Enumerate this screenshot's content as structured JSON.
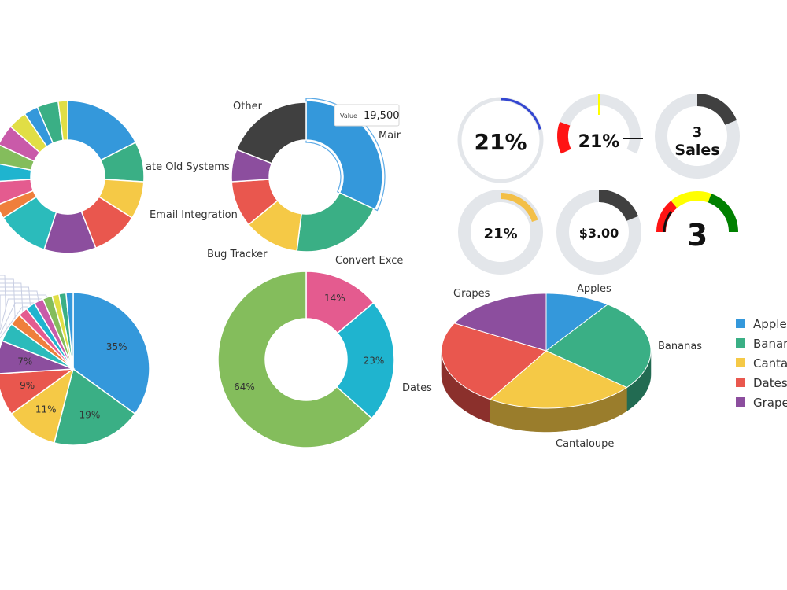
{
  "colors": {
    "blue": "#3498db",
    "teal": "#3aaf85",
    "yellow": "#f5c946",
    "red": "#e9574e",
    "purple": "#8c4e9e",
    "cyan": "#2bbbbb",
    "orange": "#ef7f3c",
    "pink": "#e45b8f",
    "sky": "#1fb4cf",
    "green": "#84bd5c",
    "lime": "#e1de45",
    "magenta": "#c95aa9",
    "dark": "#404040",
    "track": "#e3e6ea",
    "gaugeBlue": "#3346d1",
    "gaugeRed": "#ff1414",
    "gaugeYellow": "#ffff00",
    "gaugeGreen": "#008000",
    "amber": "#f3bf47",
    "bananaGreen": "#84bd5c"
  },
  "chart_data": [
    {
      "type": "pie",
      "variant": "donut",
      "labels": [
        "",
        "",
        "ate Old Systems",
        "Email Integration",
        "",
        "",
        "",
        "",
        "",
        "",
        "",
        "",
        "",
        "",
        ""
      ],
      "values": [
        17.5,
        8.5,
        8,
        10,
        11,
        11,
        3,
        5,
        4,
        4,
        4.5,
        4,
        3,
        4.5,
        2
      ]
    },
    {
      "type": "pie",
      "variant": "donut",
      "labels": [
        "Mair",
        "Convert Exce",
        "Bug Tracker",
        "",
        "",
        "Other"
      ],
      "values": [
        32,
        20,
        12,
        10,
        7,
        19
      ],
      "tooltip": {
        "label": "Value",
        "value": "19,500"
      }
    },
    {
      "type": "gauge",
      "gauges": [
        {
          "text": "21%",
          "value": 21
        },
        {
          "text": "21%",
          "value": 21
        },
        {
          "text": "3",
          "sub": "Sales",
          "value": 3
        },
        {
          "text": "21%",
          "value": 21
        },
        {
          "text": "$3.00",
          "value": 3
        },
        {
          "text": "3",
          "value": 3
        }
      ]
    },
    {
      "type": "pie",
      "values": [
        35,
        19,
        11,
        9,
        7,
        4,
        2.5,
        2,
        2,
        2,
        2,
        1.5,
        1.5,
        1.5
      ],
      "labels": [
        "35%",
        "19%",
        "11%",
        "9%",
        "7%",
        "",
        "",
        "",
        "",
        "",
        "",
        "",
        "",
        ""
      ]
    },
    {
      "type": "pie",
      "variant": "donut",
      "labels": [
        "14%",
        "23%",
        "64%"
      ],
      "values": [
        14,
        23,
        64
      ],
      "category_labels": [
        "",
        "",
        "Dates"
      ]
    },
    {
      "type": "pie",
      "variant": "3d",
      "categories": [
        "Apples",
        "Bananas",
        "Cantaloupe",
        "Dates",
        "Grapes"
      ],
      "values": [
        10,
        26,
        23,
        24,
        17
      ],
      "legend": [
        "Apple",
        "Banar",
        "Canta",
        "Dates",
        "Grape"
      ],
      "legend_position": "right"
    }
  ]
}
